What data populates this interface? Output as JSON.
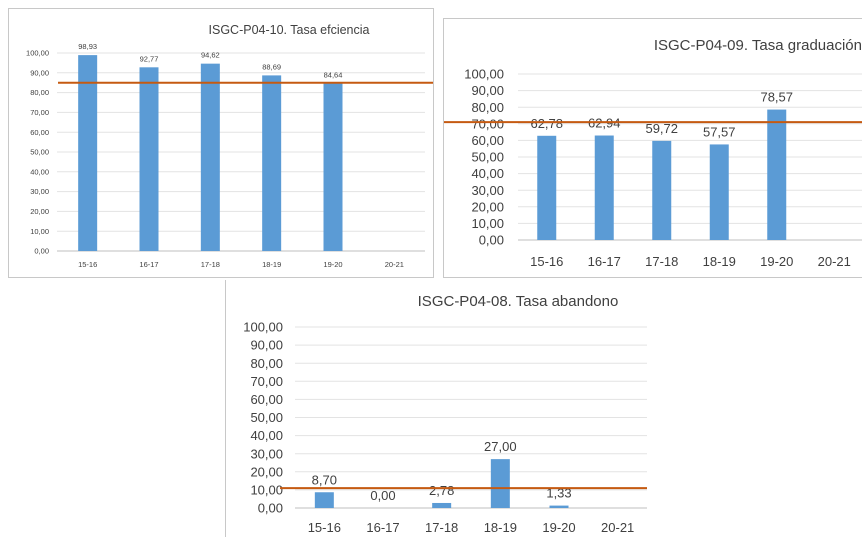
{
  "chart_data": [
    {
      "type": "bar",
      "title": "ISGC-P04-10. Tasa efciencia",
      "categories": [
        "15-16",
        "16-17",
        "17-18",
        "18-19",
        "19-20",
        "20-21"
      ],
      "values": [
        98.93,
        92.77,
        94.62,
        88.69,
        84.64,
        null
      ],
      "labels": [
        "98,93",
        "92,77",
        "94,62",
        "88,69",
        "84,64",
        ""
      ],
      "yticks": [
        "0,00",
        "10,00",
        "20,00",
        "30,00",
        "40,00",
        "50,00",
        "60,00",
        "70,00",
        "80,00",
        "90,00",
        "100,00"
      ],
      "ylim": [
        0,
        100
      ],
      "reference_line": 85,
      "grid": true,
      "bar_color": "#5b9bd5",
      "line_color": "#c55a11"
    },
    {
      "type": "bar",
      "title": "ISGC-P04-09. Tasa graduación",
      "categories": [
        "15-16",
        "16-17",
        "17-18",
        "18-19",
        "19-20",
        "20-21"
      ],
      "values": [
        62.78,
        62.94,
        59.72,
        57.57,
        78.57,
        null
      ],
      "labels": [
        "62,78",
        "62,94",
        "59,72",
        "57,57",
        "78,57",
        ""
      ],
      "yticks": [
        "0,00",
        "10,00",
        "20,00",
        "30,00",
        "40,00",
        "50,00",
        "60,00",
        "70,00",
        "80,00",
        "90,00",
        "100,00"
      ],
      "ylim": [
        0,
        100
      ],
      "reference_line": 71,
      "grid": true,
      "bar_color": "#5b9bd5",
      "line_color": "#c55a11"
    },
    {
      "type": "bar",
      "title": "ISGC-P04-08. Tasa abandono",
      "categories": [
        "15-16",
        "16-17",
        "17-18",
        "18-19",
        "19-20",
        "20-21"
      ],
      "values": [
        8.7,
        0.0,
        2.78,
        27.0,
        1.33,
        null
      ],
      "labels": [
        "8,70",
        "0,00",
        "2,78",
        "27,00",
        "1,33",
        ""
      ],
      "yticks": [
        "0,00",
        "10,00",
        "20,00",
        "30,00",
        "40,00",
        "50,00",
        "60,00",
        "70,00",
        "80,00",
        "90,00",
        "100,00"
      ],
      "ylim": [
        0,
        100
      ],
      "reference_line": 11,
      "grid": true,
      "bar_color": "#5b9bd5",
      "line_color": "#c55a11"
    }
  ]
}
